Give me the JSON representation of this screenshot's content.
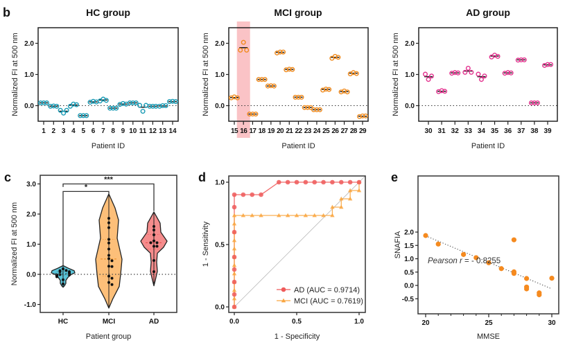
{
  "panel_labels": [
    "b",
    "c",
    "d",
    "e"
  ],
  "chart_data": [
    {
      "id": "hc",
      "type": "scatter",
      "panel": "b",
      "title": "HC group",
      "xlabel": "Patient ID",
      "ylabel": "Normalized FI at 500 nm",
      "ylim": [
        -0.5,
        2.5
      ],
      "yticks": [
        "0.0",
        "1.0",
        "2.0"
      ],
      "ytick_values": [
        0,
        1,
        2
      ],
      "color": "#1a9bb5",
      "reference_line": 0,
      "categories": [
        "1",
        "2",
        "3",
        "4",
        "5",
        "6",
        "7",
        "8",
        "9",
        "10",
        "11",
        "12",
        "13",
        "14"
      ],
      "replicates": [
        [
          0.09,
          0.09,
          0.09
        ],
        [
          -0.02,
          -0.01,
          -0.02
        ],
        [
          -0.15,
          -0.24,
          -0.15
        ],
        [
          -0.02,
          0.05,
          0.03
        ],
        [
          -0.32,
          -0.32,
          -0.32
        ],
        [
          0.11,
          0.14,
          0.12
        ],
        [
          0.15,
          0.21,
          0.17
        ],
        [
          -0.08,
          -0.08,
          -0.08
        ],
        [
          0.04,
          0.07,
          0.05
        ],
        [
          0.09,
          0.09,
          0.09
        ],
        [
          0.01,
          -0.18,
          0.01
        ],
        [
          -0.02,
          -0.02,
          -0.02
        ],
        [
          -0.02,
          0.0,
          0.0
        ],
        [
          0.13,
          0.14,
          0.13
        ]
      ],
      "means": [
        0.09,
        -0.02,
        -0.18,
        0.02,
        -0.32,
        0.12,
        0.18,
        -0.08,
        0.05,
        0.09,
        -0.05,
        -0.02,
        -0.01,
        0.13
      ]
    },
    {
      "id": "mci",
      "type": "scatter",
      "panel": "b",
      "title": "MCI group",
      "xlabel": "Patient ID",
      "ylabel": "Normalized FI at 500 nm",
      "ylim": [
        -0.5,
        2.5
      ],
      "yticks": [
        "0.0",
        "1.0",
        "2.0"
      ],
      "ytick_values": [
        0,
        1,
        2
      ],
      "color": "#f08a1c",
      "highlight_category": "16",
      "highlight_color": "#f9b8bc",
      "reference_line": 0,
      "categories": [
        "15",
        "16",
        "17",
        "18",
        "19",
        "20",
        "21",
        "22",
        "23",
        "24",
        "25",
        "26",
        "27",
        "28",
        "29"
      ],
      "replicates": [
        [
          0.25,
          0.28,
          0.25
        ],
        [
          1.78,
          2.03,
          1.78
        ],
        [
          -0.27,
          -0.27,
          -0.27
        ],
        [
          0.84,
          0.84,
          0.84
        ],
        [
          0.63,
          0.64,
          0.63
        ],
        [
          1.69,
          1.72,
          1.72
        ],
        [
          1.15,
          1.17,
          1.16
        ],
        [
          0.27,
          0.27,
          0.27
        ],
        [
          -0.06,
          -0.06,
          -0.06
        ],
        [
          -0.13,
          -0.13,
          -0.13
        ],
        [
          0.5,
          0.53,
          0.52
        ],
        [
          1.52,
          1.58,
          1.55
        ],
        [
          0.44,
          0.47,
          0.44
        ],
        [
          1.02,
          1.06,
          1.03
        ],
        [
          -0.35,
          -0.33,
          -0.33
        ]
      ],
      "means": [
        0.26,
        1.86,
        -0.27,
        0.84,
        0.63,
        1.71,
        1.16,
        0.27,
        -0.06,
        -0.13,
        0.52,
        1.55,
        0.45,
        1.04,
        -0.34
      ]
    },
    {
      "id": "ad",
      "type": "scatter",
      "panel": "b",
      "title": "AD group",
      "xlabel": "Patient ID",
      "ylabel": "Normalized FI at 500 nm",
      "ylim": [
        -0.5,
        2.5
      ],
      "yticks": [
        "0.0",
        "1.0",
        "2.0"
      ],
      "ytick_values": [
        0,
        1,
        2
      ],
      "color": "#e3338f",
      "reference_line": 0,
      "categories": [
        "30",
        "31",
        "32",
        "33",
        "34",
        "35",
        "36",
        "37",
        "38",
        "39"
      ],
      "replicates": [
        [
          1.01,
          0.84,
          0.95
        ],
        [
          0.45,
          0.48,
          0.46
        ],
        [
          1.04,
          1.06,
          1.05
        ],
        [
          1.07,
          1.2,
          1.07
        ],
        [
          1.01,
          0.84,
          0.95
        ],
        [
          1.56,
          1.62,
          1.58
        ],
        [
          1.04,
          1.06,
          1.05
        ],
        [
          1.46,
          1.47,
          1.47
        ],
        [
          0.09,
          0.09,
          0.09
        ],
        [
          1.29,
          1.32,
          1.32
        ]
      ],
      "means": [
        0.93,
        0.46,
        1.05,
        1.11,
        0.93,
        1.59,
        1.05,
        1.47,
        0.09,
        1.31
      ]
    },
    {
      "id": "violin",
      "type": "violin",
      "panel": "c",
      "xlabel": "Patient group",
      "ylabel": "Normalized FI at 500 nm",
      "ylim": [
        -1.25,
        3.25
      ],
      "yticks": [
        "-1.0",
        "0.0",
        "1.0",
        "2.0",
        "3.0"
      ],
      "ytick_values": [
        -1,
        0,
        1,
        2,
        3
      ],
      "reference_line": 0,
      "categories": [
        "HC",
        "MCI",
        "AD"
      ],
      "colors": [
        "#5bc4d8",
        "#fdbf79",
        "#f58c8c"
      ],
      "quartile_colors": [
        "#2a6f7d",
        "#f08a1c",
        "#e84a4a"
      ],
      "medians": [
        0.03,
        0.51,
        1.05
      ],
      "quartiles": [
        [
          -0.02,
          0.09
        ],
        [
          -0.06,
          1.16
        ],
        [
          0.84,
          1.32
        ]
      ],
      "ranges": [
        [
          -0.43,
          0.29
        ],
        [
          -1.12,
          2.67
        ],
        [
          -0.38,
          2.07
        ]
      ],
      "points": [
        [
          0.09,
          -0.02,
          -0.18,
          0.02,
          -0.32,
          0.12,
          0.18,
          -0.08,
          0.05,
          0.09,
          -0.05,
          -0.02,
          -0.01,
          0.13
        ],
        [
          0.26,
          1.86,
          -0.27,
          0.84,
          0.63,
          1.71,
          1.16,
          0.27,
          -0.06,
          -0.13,
          0.52,
          1.55,
          0.45,
          1.04,
          -0.34
        ],
        [
          0.93,
          0.46,
          1.05,
          1.11,
          0.93,
          1.59,
          1.05,
          1.47,
          0.09,
          1.31
        ]
      ],
      "significance": [
        {
          "from": "HC",
          "to": "MCI",
          "label": "*"
        },
        {
          "from": "HC",
          "to": "AD",
          "label": "***"
        }
      ]
    },
    {
      "id": "roc",
      "type": "line",
      "panel": "d",
      "xlabel": "1 - Specificity",
      "ylabel": "1 - Sensitivity",
      "xlim": [
        0,
        1
      ],
      "ylim": [
        0,
        1
      ],
      "xticks": [
        "0.0",
        "0.5",
        "1.0"
      ],
      "xtick_values": [
        0,
        0.5,
        1
      ],
      "yticks": [
        "0.0",
        "0.5",
        "1.0"
      ],
      "ytick_values": [
        0,
        0.5,
        1
      ],
      "legend_position": "bottom-right",
      "diagonal": true,
      "series": [
        {
          "name": "AD (AUC = 0.9714)",
          "marker": "circle",
          "color": "#ef5b5b",
          "points": [
            [
              0,
              0
            ],
            [
              0,
              0.1
            ],
            [
              0,
              0.2
            ],
            [
              0,
              0.3
            ],
            [
              0,
              0.4
            ],
            [
              0,
              0.6
            ],
            [
              0,
              0.8
            ],
            [
              0,
              0.9
            ],
            [
              0.0714,
              0.9
            ],
            [
              0.1429,
              0.9
            ],
            [
              0.2143,
              0.9
            ],
            [
              0.3571,
              1
            ],
            [
              0.4286,
              1
            ],
            [
              0.5,
              1
            ],
            [
              0.5714,
              1
            ],
            [
              0.6429,
              1
            ],
            [
              0.7143,
              1
            ],
            [
              0.7857,
              1
            ],
            [
              0.8571,
              1
            ],
            [
              0.9286,
              1
            ],
            [
              1,
              1
            ]
          ]
        },
        {
          "name": "MCI (AUC = 0.7619)",
          "marker": "triangle",
          "color": "#f9a640",
          "points": [
            [
              0,
              0
            ],
            [
              0,
              0.0667
            ],
            [
              0,
              0.1333
            ],
            [
              0,
              0.2
            ],
            [
              0,
              0.2667
            ],
            [
              0,
              0.3333
            ],
            [
              0,
              0.4
            ],
            [
              0,
              0.4667
            ],
            [
              0,
              0.5333
            ],
            [
              0,
              0.6
            ],
            [
              0,
              0.6667
            ],
            [
              0,
              0.7333
            ],
            [
              0.0714,
              0.7333
            ],
            [
              0.1429,
              0.7333
            ],
            [
              0.2143,
              0.7333
            ],
            [
              0.3571,
              0.7333
            ],
            [
              0.4286,
              0.7333
            ],
            [
              0.5,
              0.7333
            ],
            [
              0.5714,
              0.7333
            ],
            [
              0.6429,
              0.7333
            ],
            [
              0.7143,
              0.7333
            ],
            [
              0.7857,
              0.7333
            ],
            [
              0.7857,
              0.8
            ],
            [
              0.8571,
              0.8
            ],
            [
              0.8571,
              0.8667
            ],
            [
              0.9286,
              0.8667
            ],
            [
              0.9286,
              0.9333
            ],
            [
              1,
              0.9333
            ],
            [
              1,
              1
            ]
          ]
        }
      ]
    },
    {
      "id": "corr",
      "type": "scatter",
      "panel": "e",
      "xlabel": "MMSE",
      "ylabel": "SNAFIA",
      "xlim": [
        19.6,
        30.5
      ],
      "ylim": [
        -0.55,
        2.05
      ],
      "xticks": [
        "20",
        "25",
        "30"
      ],
      "xtick_values": [
        20,
        25,
        30
      ],
      "xminor_values": [
        21,
        22,
        23,
        24,
        26,
        27,
        28,
        29
      ],
      "yticks": [
        "-0.5",
        "0.0",
        "0.5",
        "1.0",
        "1.5",
        "2.0"
      ],
      "ytick_values": [
        -0.5,
        0,
        0.5,
        1,
        1.5,
        2
      ],
      "color": "#f58a1f",
      "annotation_italic": "Pearson r",
      "annotation_value": " = - 0.8255",
      "trendline": [
        [
          20,
          1.86
        ],
        [
          30,
          -0.13
        ]
      ],
      "points": [
        [
          20,
          1.87
        ],
        [
          21,
          1.55
        ],
        [
          23,
          1.16
        ],
        [
          24,
          1.04
        ],
        [
          25,
          0.85
        ],
        [
          26,
          0.63
        ],
        [
          27,
          1.71
        ],
        [
          27,
          0.51
        ],
        [
          27,
          0.45
        ],
        [
          28,
          0.26
        ],
        [
          28,
          -0.06
        ],
        [
          28,
          -0.13
        ],
        [
          29,
          -0.28
        ],
        [
          29,
          -0.35
        ],
        [
          30,
          0.27
        ]
      ]
    }
  ]
}
